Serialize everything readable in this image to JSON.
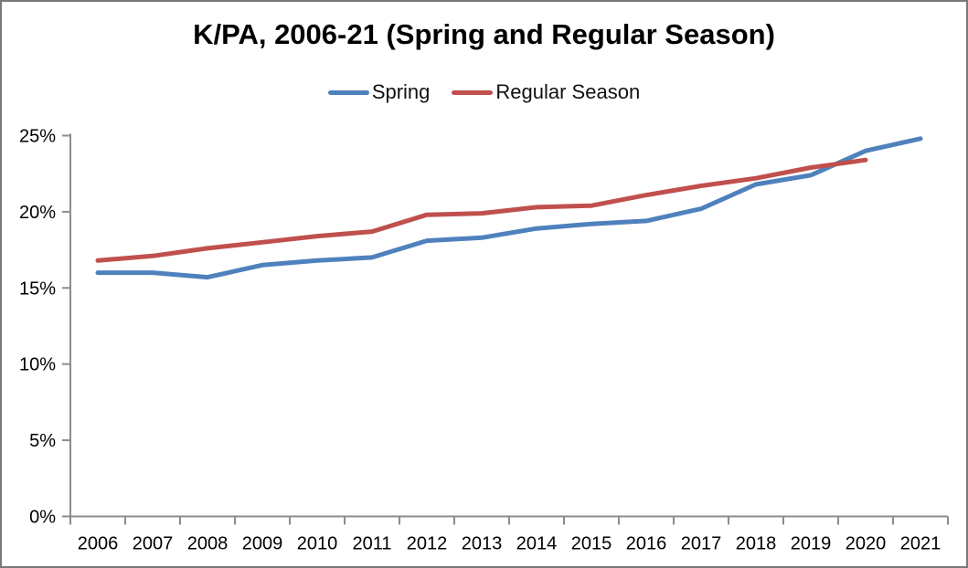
{
  "title": "K/PA, 2006-21 (Spring and Regular Season)",
  "chart_data": {
    "type": "line",
    "title": "K/PA, 2006-21 (Spring and Regular Season)",
    "categories": [
      "2006",
      "2007",
      "2008",
      "2009",
      "2010",
      "2011",
      "2012",
      "2013",
      "2014",
      "2015",
      "2016",
      "2017",
      "2018",
      "2019",
      "2020",
      "2021"
    ],
    "series": [
      {
        "name": "Spring",
        "color": "#4F81BD",
        "values": [
          16.0,
          16.0,
          15.7,
          16.5,
          16.8,
          17.0,
          18.1,
          18.3,
          18.9,
          19.2,
          19.4,
          20.2,
          21.8,
          22.4,
          24.0,
          24.8
        ]
      },
      {
        "name": "Regular Season",
        "color": "#C0504D",
        "values": [
          16.8,
          17.1,
          17.6,
          18.0,
          18.4,
          18.7,
          19.8,
          19.9,
          20.3,
          20.4,
          21.1,
          21.7,
          22.2,
          22.9,
          23.4,
          null
        ]
      }
    ],
    "xlabel": "",
    "ylabel": "",
    "ylim": [
      0,
      25
    ],
    "y_ticks": [
      0,
      5,
      10,
      15,
      20,
      25
    ],
    "y_tick_labels": [
      "0%",
      "5%",
      "10%",
      "15%",
      "20%",
      "25%"
    ],
    "grid": false,
    "legend_position": "top-center",
    "axis_color": "#8C8C8C"
  }
}
